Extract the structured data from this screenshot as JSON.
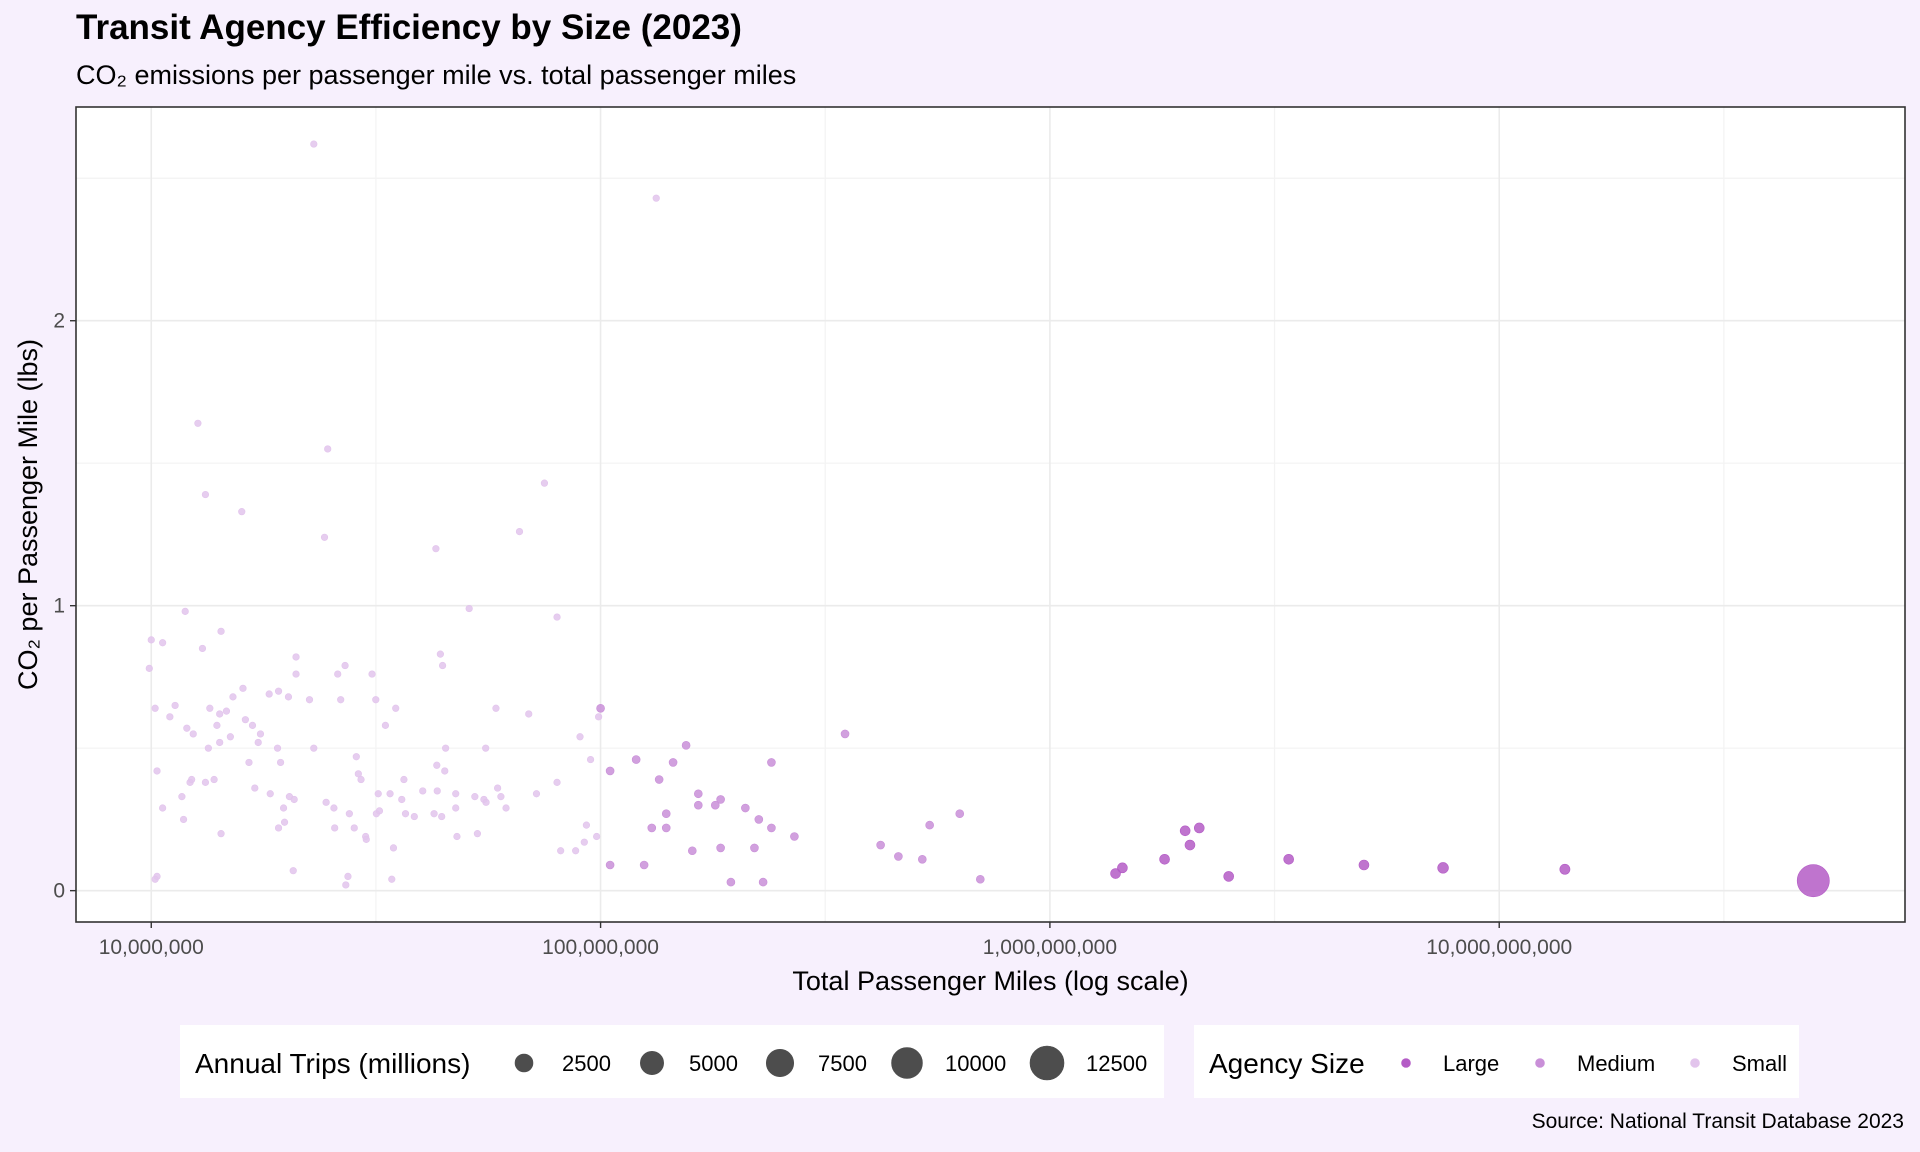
{
  "title": "Transit Agency Efficiency by Size (2023)",
  "subtitle": "CO₂ emissions per passenger mile vs. total passenger miles",
  "caption": "Source: National Transit Database 2023",
  "colors": {
    "background": "#f7f0fd",
    "panel": "#ffffff",
    "grid": "#ebebeb",
    "Large": "#b45cc6",
    "Medium": "#c98fd8",
    "Small": "#e2c4ec",
    "size_legend": "#4d4d4d"
  },
  "chart_data": {
    "type": "scatter",
    "xlabel": "Total Passenger Miles (log scale)",
    "ylabel": "CO₂ per Passenger Mile (lbs)",
    "x_scale": "log10",
    "xlim": [
      6800000,
      80000000000
    ],
    "ylim": [
      -0.11,
      2.75
    ],
    "x_ticks": [
      10000000,
      100000000,
      1000000000,
      10000000000
    ],
    "x_tick_labels": [
      "10,000,000",
      "100,000,000",
      "1,000,000,000",
      "10,000,000,000"
    ],
    "y_ticks": [
      0,
      1,
      2
    ],
    "y_tick_labels": [
      "0",
      "1",
      "2"
    ],
    "grid": true,
    "legend_position": "bottom",
    "size_legend": {
      "title": "Annual Trips (millions)",
      "values": [
        2500,
        5000,
        7500,
        10000,
        12500
      ],
      "labels": [
        "2500",
        "5000",
        "7500",
        "10000",
        "12500"
      ]
    },
    "color_legend": {
      "title": "Agency Size",
      "labels": [
        "Large",
        "Medium",
        "Small"
      ]
    },
    "series": [
      {
        "name": "Large",
        "points": [
          [
            1400000000,
            0.06,
            60
          ],
          [
            1450000000,
            0.08,
            60
          ],
          [
            1800000000,
            0.11,
            130
          ],
          [
            2000000000,
            0.21,
            60
          ],
          [
            2050000000,
            0.16,
            110
          ],
          [
            2150000000,
            0.22,
            150
          ],
          [
            2500000000,
            0.05,
            130
          ],
          [
            3400000000,
            0.11,
            90
          ],
          [
            5000000000,
            0.09,
            350
          ],
          [
            7500000000,
            0.08,
            500
          ],
          [
            14000000000,
            0.075,
            400
          ],
          [
            50000000000,
            0.035,
            11000
          ]
        ]
      },
      {
        "name": "Medium",
        "points": [
          [
            350000000,
            0.55,
            40
          ],
          [
            420000000,
            0.16,
            40
          ],
          [
            460000000,
            0.12,
            40
          ],
          [
            520000000,
            0.11,
            40
          ],
          [
            540000000,
            0.23,
            60
          ],
          [
            630000000,
            0.27,
            60
          ],
          [
            700000000,
            0.04,
            50
          ],
          [
            100000000,
            0.64,
            20
          ],
          [
            105000000,
            0.42,
            20
          ],
          [
            120000000,
            0.46,
            20
          ],
          [
            135000000,
            0.39,
            20
          ],
          [
            145000000,
            0.45,
            20
          ],
          [
            155000000,
            0.51,
            20
          ],
          [
            165000000,
            0.34,
            20
          ],
          [
            165000000,
            0.3,
            20
          ],
          [
            185000000,
            0.32,
            20
          ],
          [
            210000000,
            0.29,
            20
          ],
          [
            225000000,
            0.25,
            20
          ],
          [
            240000000,
            0.45,
            20
          ],
          [
            270000000,
            0.19,
            20
          ],
          [
            130000000,
            0.22,
            20
          ],
          [
            140000000,
            0.27,
            20
          ],
          [
            140000000,
            0.22,
            20
          ],
          [
            160000000,
            0.14,
            20
          ],
          [
            185000000,
            0.15,
            20
          ],
          [
            195000000,
            0.03,
            20
          ],
          [
            220000000,
            0.15,
            20
          ],
          [
            230000000,
            0.03,
            20
          ],
          [
            240000000,
            0.22,
            20
          ],
          [
            125000000,
            0.09,
            20
          ],
          [
            105000000,
            0.09,
            20
          ],
          [
            180000000,
            0.3,
            20
          ]
        ]
      },
      {
        "name": "Small",
        "points": [
          [
            23000000,
            2.62,
            10
          ],
          [
            133000000,
            2.43,
            10
          ],
          [
            12700000,
            1.64,
            10
          ],
          [
            24700000,
            1.55,
            10
          ],
          [
            13200000,
            1.39,
            10
          ],
          [
            15900000,
            1.33,
            10
          ],
          [
            75000000,
            1.43,
            10
          ],
          [
            24300000,
            1.24,
            10
          ],
          [
            43000000,
            1.2,
            10
          ],
          [
            66000000,
            1.26,
            10
          ],
          [
            10000000,
            0.88,
            10
          ],
          [
            10600000,
            0.87,
            10
          ],
          [
            11900000,
            0.98,
            10
          ],
          [
            13000000,
            0.85,
            10
          ],
          [
            14300000,
            0.91,
            10
          ],
          [
            9900000,
            0.78,
            10
          ],
          [
            21000000,
            0.82,
            10
          ],
          [
            26000000,
            0.76,
            10
          ],
          [
            27000000,
            0.79,
            10
          ],
          [
            31000000,
            0.76,
            10
          ],
          [
            44000000,
            0.83,
            10
          ],
          [
            44500000,
            0.79,
            10
          ],
          [
            51000000,
            0.99,
            10
          ],
          [
            80000000,
            0.96,
            10
          ],
          [
            10200000,
            0.64,
            10
          ],
          [
            11000000,
            0.61,
            10
          ],
          [
            11300000,
            0.65,
            10
          ],
          [
            12000000,
            0.57,
            10
          ],
          [
            12400000,
            0.55,
            10
          ],
          [
            13500000,
            0.64,
            10
          ],
          [
            14000000,
            0.58,
            10
          ],
          [
            14200000,
            0.62,
            10
          ],
          [
            14700000,
            0.63,
            10
          ],
          [
            15200000,
            0.68,
            10
          ],
          [
            16000000,
            0.71,
            10
          ],
          [
            16200000,
            0.6,
            10
          ],
          [
            16800000,
            0.58,
            10
          ],
          [
            17500000,
            0.55,
            10
          ],
          [
            18300000,
            0.69,
            10
          ],
          [
            19200000,
            0.7,
            10
          ],
          [
            20200000,
            0.68,
            10
          ],
          [
            21000000,
            0.76,
            10
          ],
          [
            22500000,
            0.67,
            10
          ],
          [
            13400000,
            0.5,
            10
          ],
          [
            14200000,
            0.52,
            10
          ],
          [
            15000000,
            0.54,
            10
          ],
          [
            16500000,
            0.45,
            10
          ],
          [
            17300000,
            0.52,
            10
          ],
          [
            19100000,
            0.5,
            10
          ],
          [
            19400000,
            0.45,
            10
          ],
          [
            23000000,
            0.5,
            10
          ],
          [
            10300000,
            0.42,
            10
          ],
          [
            11700000,
            0.33,
            10
          ],
          [
            12200000,
            0.38,
            10
          ],
          [
            12300000,
            0.39,
            10
          ],
          [
            13200000,
            0.38,
            10
          ],
          [
            13800000,
            0.39,
            10
          ],
          [
            14300000,
            0.2,
            10
          ],
          [
            11800000,
            0.25,
            10
          ],
          [
            10600000,
            0.29,
            10
          ],
          [
            10300000,
            0.05,
            10
          ],
          [
            10200000,
            0.04,
            10
          ],
          [
            17000000,
            0.36,
            10
          ],
          [
            18400000,
            0.34,
            10
          ],
          [
            19700000,
            0.29,
            10
          ],
          [
            20300000,
            0.33,
            10
          ],
          [
            20800000,
            0.32,
            10
          ],
          [
            19200000,
            0.22,
            10
          ],
          [
            19800000,
            0.24,
            10
          ],
          [
            20700000,
            0.07,
            10
          ],
          [
            24500000,
            0.31,
            10
          ],
          [
            25500000,
            0.29,
            10
          ],
          [
            25600000,
            0.22,
            10
          ],
          [
            26400000,
            0.67,
            10
          ],
          [
            28600000,
            0.47,
            10
          ],
          [
            28900000,
            0.41,
            10
          ],
          [
            29300000,
            0.39,
            10
          ],
          [
            27600000,
            0.27,
            10
          ],
          [
            28300000,
            0.22,
            10
          ],
          [
            30000000,
            0.19,
            10
          ],
          [
            30100000,
            0.18,
            10
          ],
          [
            27400000,
            0.05,
            10
          ],
          [
            27100000,
            0.02,
            10
          ],
          [
            31600000,
            0.67,
            10
          ],
          [
            33200000,
            0.58,
            10
          ],
          [
            35000000,
            0.64,
            10
          ],
          [
            36500000,
            0.39,
            10
          ],
          [
            34000000,
            0.34,
            10
          ],
          [
            32000000,
            0.34,
            10
          ],
          [
            31700000,
            0.27,
            10
          ],
          [
            32200000,
            0.28,
            10
          ],
          [
            36100000,
            0.32,
            10
          ],
          [
            36800000,
            0.27,
            10
          ],
          [
            38500000,
            0.26,
            10
          ],
          [
            40200000,
            0.35,
            10
          ],
          [
            43300000,
            0.35,
            10
          ],
          [
            34600000,
            0.15,
            10
          ],
          [
            34300000,
            0.04,
            10
          ],
          [
            45000000,
            0.42,
            10
          ],
          [
            43200000,
            0.44,
            10
          ],
          [
            45200000,
            0.5,
            10
          ],
          [
            42600000,
            0.27,
            10
          ],
          [
            44300000,
            0.26,
            10
          ],
          [
            47600000,
            0.34,
            10
          ],
          [
            47600000,
            0.29,
            10
          ],
          [
            47900000,
            0.19,
            10
          ],
          [
            53200000,
            0.2,
            10
          ],
          [
            55000000,
            0.32,
            10
          ],
          [
            55500000,
            0.5,
            10
          ],
          [
            58500000,
            0.64,
            10
          ],
          [
            60000000,
            0.33,
            10
          ],
          [
            61600000,
            0.29,
            10
          ],
          [
            52500000,
            0.33,
            10
          ],
          [
            55600000,
            0.31,
            10
          ],
          [
            59000000,
            0.36,
            10
          ],
          [
            69200000,
            0.62,
            10
          ],
          [
            72000000,
            0.34,
            10
          ],
          [
            80000000,
            0.38,
            10
          ],
          [
            81500000,
            0.14,
            10
          ],
          [
            88000000,
            0.14,
            10
          ],
          [
            90000000,
            0.54,
            10
          ],
          [
            92000000,
            0.17,
            10
          ],
          [
            93000000,
            0.23,
            10
          ],
          [
            95000000,
            0.46,
            10
          ],
          [
            99000000,
            0.61,
            10
          ],
          [
            98000000,
            0.19,
            10
          ]
        ]
      }
    ]
  }
}
